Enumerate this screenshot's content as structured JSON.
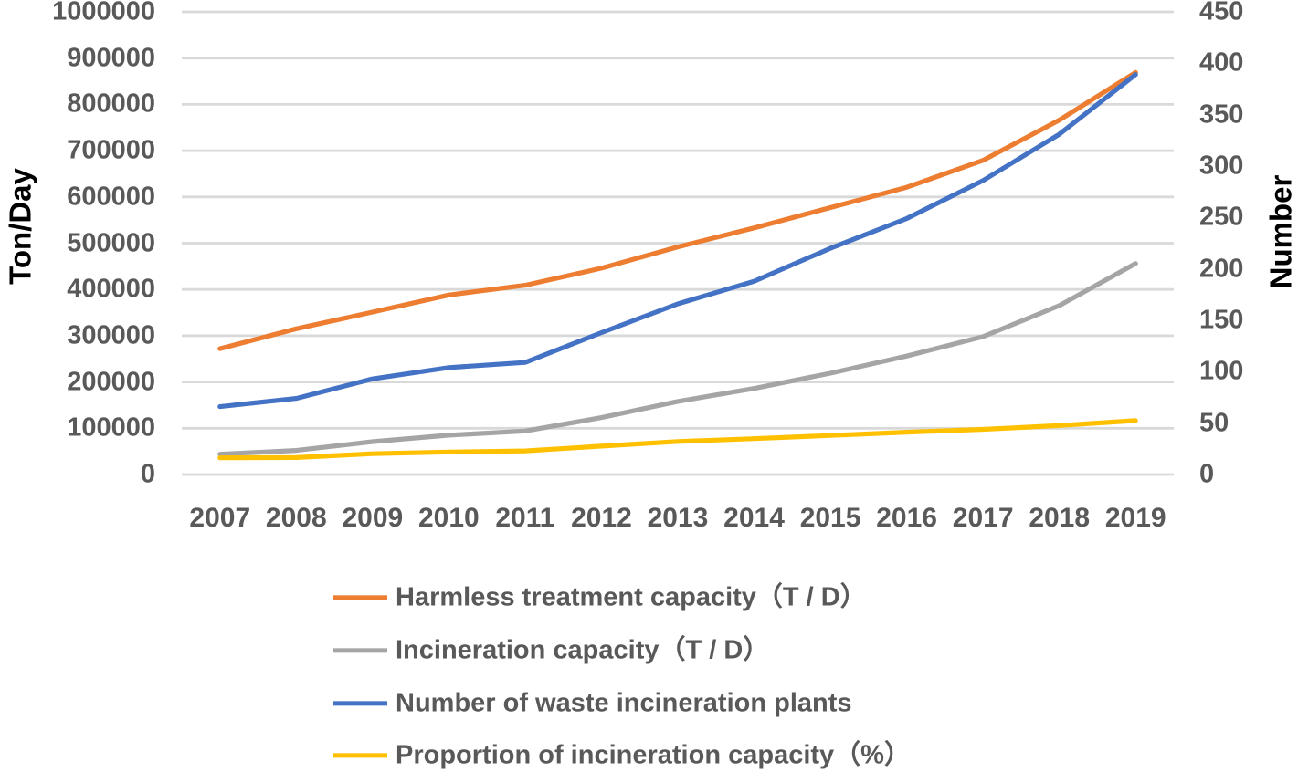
{
  "chart_data": {
    "type": "line",
    "title": "",
    "x": [
      "2007",
      "2008",
      "2009",
      "2010",
      "2011",
      "2012",
      "2013",
      "2014",
      "2015",
      "2016",
      "2017",
      "2018",
      "2019"
    ],
    "series": [
      {
        "name": "harmless-treatment-capacity",
        "label": "Harmless treatment capacity（T / D）",
        "color": "#ED7D31",
        "axis": "left",
        "values": [
          272000,
          315000,
          351000,
          388000,
          409000,
          446000,
          492000,
          533000,
          577000,
          621000,
          679000,
          766000,
          869000
        ]
      },
      {
        "name": "incineration-capacity",
        "label": "Incineration capacity（T / D）",
        "color": "#A5A5A5",
        "axis": "left",
        "values": [
          44000,
          52000,
          71000,
          85000,
          94000,
          123000,
          158000,
          186000,
          219000,
          256000,
          298000,
          365000,
          456000
        ]
      },
      {
        "name": "number-of-waste-incineration-plants",
        "label": "Number of waste incineration plants",
        "color": "#4472C4",
        "axis": "right",
        "values": [
          66,
          74,
          93,
          104,
          109,
          138,
          166,
          188,
          220,
          249,
          286,
          331,
          389
        ]
      },
      {
        "name": "proportion-of-incineration-capacity",
        "label": "Proportion of incineration capacity（%）",
        "color": "#FFC000",
        "axis": "right",
        "values": [
          16.2,
          16.5,
          20.2,
          21.9,
          23.0,
          27.6,
          32.1,
          34.9,
          38.0,
          41.2,
          43.9,
          47.7,
          52.5
        ]
      }
    ],
    "left_axis": {
      "title": "Ton/Day",
      "min": 0,
      "max": 1000000,
      "step": 100000,
      "tick_labels": [
        "1000000",
        "900000",
        "800000",
        "700000",
        "600000",
        "500000",
        "400000",
        "300000",
        "200000",
        "100000",
        "0"
      ]
    },
    "right_axis": {
      "title": "Number",
      "min": 0,
      "max": 450,
      "step": 50,
      "tick_labels": [
        "450",
        "400",
        "350",
        "300",
        "250",
        "200",
        "150",
        "100",
        "50",
        "0"
      ]
    },
    "x_axis": {
      "tick_labels": [
        "2007",
        "2008",
        "2009",
        "2010",
        "2011",
        "2012",
        "2013",
        "2014",
        "2015",
        "2016",
        "2017",
        "2018",
        "2019"
      ]
    },
    "grid": true,
    "legend_position": "bottom-left",
    "colors": {
      "gridline": "#D9D9D9",
      "tick_text": "#595959",
      "axis_title_text": "#000000",
      "background": "#FFFFFF"
    }
  }
}
